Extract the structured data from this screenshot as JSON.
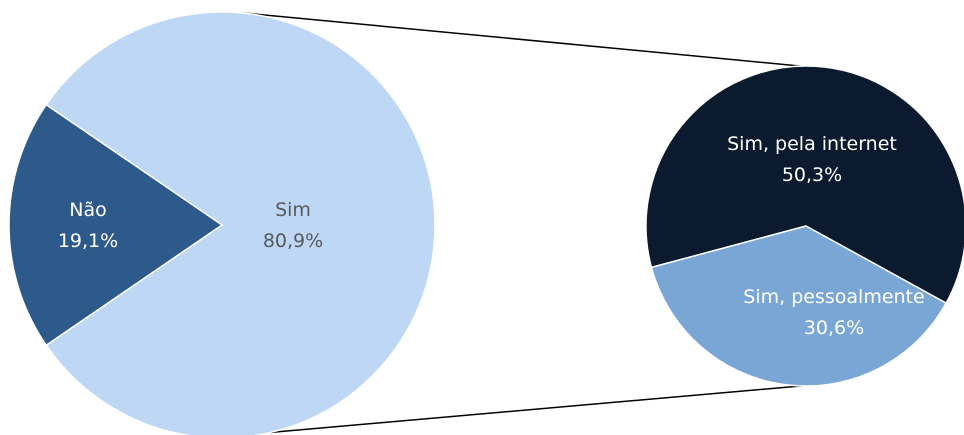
{
  "chart_data": {
    "type": "pie",
    "main_pie": {
      "slices": [
        {
          "label": "Sim",
          "value_text": "80,9%",
          "value": 80.9,
          "color": "#bdd7f4",
          "text_color": "#595959"
        },
        {
          "label": "Não",
          "value_text": "19,1%",
          "value": 19.1,
          "color": "#2d5a8a",
          "text_color": "#ffffff"
        }
      ]
    },
    "breakdown_pie": {
      "parent": "Sim",
      "slices": [
        {
          "label": "Sim, pela internet",
          "value_text": "50,3%",
          "value": 50.3,
          "color": "#0b1a2e",
          "text_color": "#ffffff"
        },
        {
          "label": "Sim, pessoalmente",
          "value_text": "30,6%",
          "value": 30.6,
          "color": "#7aa6d6",
          "text_color": "#ffffff"
        }
      ]
    },
    "connector_color": "#000000"
  }
}
